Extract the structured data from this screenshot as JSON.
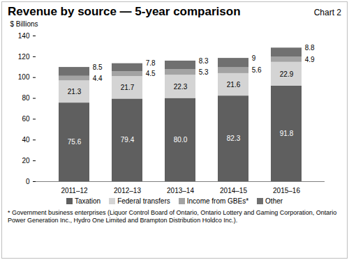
{
  "chart_data": {
    "type": "bar",
    "title": "Revenue by source — 5-year comparison",
    "chart_number": "Chart 2",
    "y_label": "$ Billions",
    "footnote": "* Government business enterprises (Liquor Control Board of Ontario, Ontario Lottery and Gaming Corporation, Ontario Power Generation Inc., Hydro One Limited and Brampton Distribution Holdco Inc.).",
    "categories": [
      "2011–12",
      "2012–13",
      "2013–14",
      "2014–15",
      "2015–16"
    ],
    "stacked": true,
    "data_labels": true,
    "legend": "bottom",
    "ylim": [
      0,
      140
    ],
    "yticks": [
      0,
      20,
      40,
      60,
      80,
      100,
      120,
      140
    ],
    "series": [
      {
        "name": "Taxation",
        "color": "#5f5f5f",
        "values": [
          75.6,
          79.4,
          80.0,
          82.3,
          91.8
        ],
        "value_labels": [
          "75.6",
          "79.4",
          "80.0",
          "82.3",
          "91.8"
        ]
      },
      {
        "name": "Federal transfers",
        "color": "#d4d4d4",
        "values": [
          21.3,
          21.7,
          22.3,
          21.6,
          22.9
        ]
      },
      {
        "name": "Income from GBEs*",
        "color": "#a3a3a3",
        "values": [
          4.4,
          4.5,
          5.3,
          5.6,
          4.9
        ]
      },
      {
        "name": "Other",
        "color": "#707070",
        "values": [
          8.5,
          7.8,
          8.3,
          9.0,
          8.8
        ]
      }
    ]
  }
}
